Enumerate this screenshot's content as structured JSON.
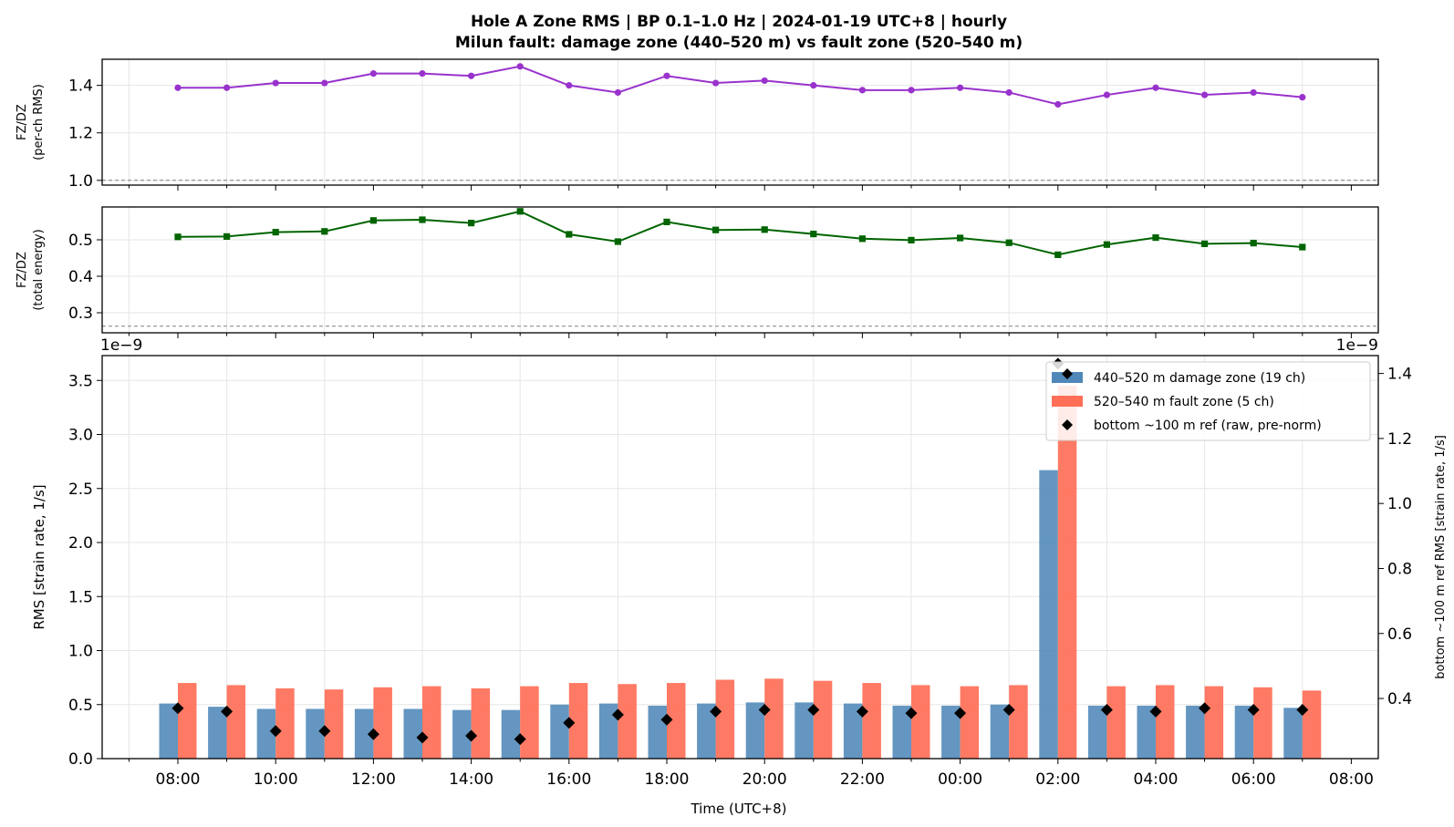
{
  "title_line1": "Hole A Zone RMS  |  BP 0.1–1.0 Hz  |  2024-01-19 UTC+8  |  hourly",
  "title_line2": "Milun fault: damage zone (440–520 m) vs fault zone (520–540 m)",
  "xlabel": "Time (UTC+8)",
  "x_tick_labels": [
    "08:00",
    "10:00",
    "12:00",
    "14:00",
    "16:00",
    "18:00",
    "20:00",
    "22:00",
    "00:00",
    "02:00",
    "04:00",
    "06:00",
    "08:00"
  ],
  "colors": {
    "fzdz_rms": "#9932cc",
    "fzdz_energy": "#006400",
    "damage": "#4f87b8",
    "fault": "#ff6f57",
    "ref": "#000000"
  },
  "chart_data": [
    {
      "type": "line",
      "ylabel_line1": "FZ/DZ",
      "ylabel_line2": "(per-ch RMS)",
      "ylim": [
        0.98,
        1.51
      ],
      "yticks": [
        1.0,
        1.2,
        1.4
      ],
      "reference_line": 1.0,
      "grid": true,
      "x": [
        "08:00",
        "09:00",
        "10:00",
        "11:00",
        "12:00",
        "13:00",
        "14:00",
        "15:00",
        "16:00",
        "17:00",
        "18:00",
        "19:00",
        "20:00",
        "21:00",
        "22:00",
        "23:00",
        "00:00",
        "01:00",
        "02:00",
        "03:00",
        "04:00",
        "05:00",
        "06:00",
        "07:00"
      ],
      "series": [
        {
          "values": [
            1.39,
            1.39,
            1.41,
            1.41,
            1.45,
            1.45,
            1.44,
            1.48,
            1.4,
            1.37,
            1.44,
            1.41,
            1.42,
            1.4,
            1.38,
            1.38,
            1.39,
            1.37,
            1.32,
            1.36,
            1.39,
            1.36,
            1.37,
            1.35
          ]
        }
      ]
    },
    {
      "type": "line",
      "ylabel_line1": "FZ/DZ",
      "ylabel_line2": "(total energy)",
      "ylim": [
        0.245,
        0.59
      ],
      "yticks": [
        0.3,
        0.4,
        0.5
      ],
      "reference_line": 0.263,
      "grid": true,
      "x": [
        "08:00",
        "09:00",
        "10:00",
        "11:00",
        "12:00",
        "13:00",
        "14:00",
        "15:00",
        "16:00",
        "17:00",
        "18:00",
        "19:00",
        "20:00",
        "21:00",
        "22:00",
        "23:00",
        "00:00",
        "01:00",
        "02:00",
        "03:00",
        "04:00",
        "05:00",
        "06:00",
        "07:00"
      ],
      "series": [
        {
          "values": [
            0.508,
            0.509,
            0.521,
            0.523,
            0.553,
            0.555,
            0.546,
            0.578,
            0.515,
            0.495,
            0.549,
            0.527,
            0.528,
            0.516,
            0.503,
            0.499,
            0.505,
            0.492,
            0.459,
            0.487,
            0.506,
            0.489,
            0.491,
            0.48
          ]
        }
      ]
    },
    {
      "type": "bar",
      "ylabel": "RMS  [strain rate, 1/s]",
      "ylabel_right": "bottom ~100 m ref RMS  [strain rate, 1/s]",
      "scale_left": "1e−9",
      "scale_right": "1e−9",
      "ylim": [
        0,
        3.73
      ],
      "yticks": [
        0.0,
        0.5,
        1.0,
        1.5,
        2.0,
        2.5,
        3.0,
        3.5
      ],
      "ylim_right": [
        0.215,
        1.455
      ],
      "yticks_right": [
        0.4,
        0.6,
        0.8,
        1.0,
        1.2,
        1.4
      ],
      "legend_position": "top-right",
      "grid": true,
      "x": [
        "08:00",
        "09:00",
        "10:00",
        "11:00",
        "12:00",
        "13:00",
        "14:00",
        "15:00",
        "16:00",
        "17:00",
        "18:00",
        "19:00",
        "20:00",
        "21:00",
        "22:00",
        "23:00",
        "00:00",
        "01:00",
        "02:00",
        "03:00",
        "04:00",
        "05:00",
        "06:00",
        "07:00"
      ],
      "series": [
        {
          "name": "440–520 m  damage zone (19 ch)",
          "values": [
            0.51,
            0.48,
            0.46,
            0.46,
            0.46,
            0.46,
            0.45,
            0.45,
            0.5,
            0.51,
            0.49,
            0.51,
            0.52,
            0.52,
            0.51,
            0.49,
            0.49,
            0.5,
            2.67,
            0.49,
            0.49,
            0.49,
            0.49,
            0.47
          ]
        },
        {
          "name": "520–540 m  fault zone (5 ch)",
          "values": [
            0.7,
            0.68,
            0.65,
            0.64,
            0.66,
            0.67,
            0.65,
            0.67,
            0.7,
            0.69,
            0.7,
            0.73,
            0.74,
            0.72,
            0.7,
            0.68,
            0.67,
            0.68,
            3.45,
            0.67,
            0.68,
            0.67,
            0.66,
            0.63
          ]
        },
        {
          "name": "bottom ~100 m ref (raw, pre-norm)",
          "axis": "right",
          "values": [
            0.37,
            0.36,
            0.3,
            0.3,
            0.29,
            0.28,
            0.285,
            0.275,
            0.325,
            0.35,
            0.335,
            0.36,
            0.365,
            0.365,
            0.36,
            0.355,
            0.355,
            0.365,
            1.43,
            0.365,
            0.36,
            0.37,
            0.365,
            0.365
          ]
        }
      ]
    }
  ]
}
